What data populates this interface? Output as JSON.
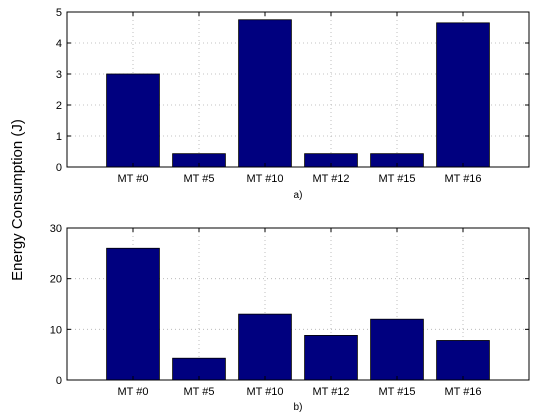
{
  "shared_ylabel": "Energy Consumption (J)",
  "colors": {
    "bar": "#00007f",
    "grid": "#b0b0b0"
  },
  "chart_data": [
    {
      "type": "bar",
      "caption": "a)",
      "categories": [
        "MT #0",
        "MT #5",
        "MT #10",
        "MT #12",
        "MT #15",
        "MT #16"
      ],
      "values": [
        3.0,
        0.43,
        4.75,
        0.43,
        0.43,
        4.65
      ],
      "ylim": [
        0,
        5
      ],
      "yticks": [
        0,
        1,
        2,
        3,
        4,
        5
      ],
      "grid": true
    },
    {
      "type": "bar",
      "caption": "b)",
      "categories": [
        "MT #0",
        "MT #5",
        "MT #10",
        "MT #12",
        "MT #15",
        "MT #16"
      ],
      "values": [
        26.0,
        4.3,
        13.0,
        8.8,
        12.0,
        7.8
      ],
      "ylim": [
        0,
        30
      ],
      "yticks": [
        0,
        10,
        20,
        30
      ],
      "grid": true
    }
  ]
}
